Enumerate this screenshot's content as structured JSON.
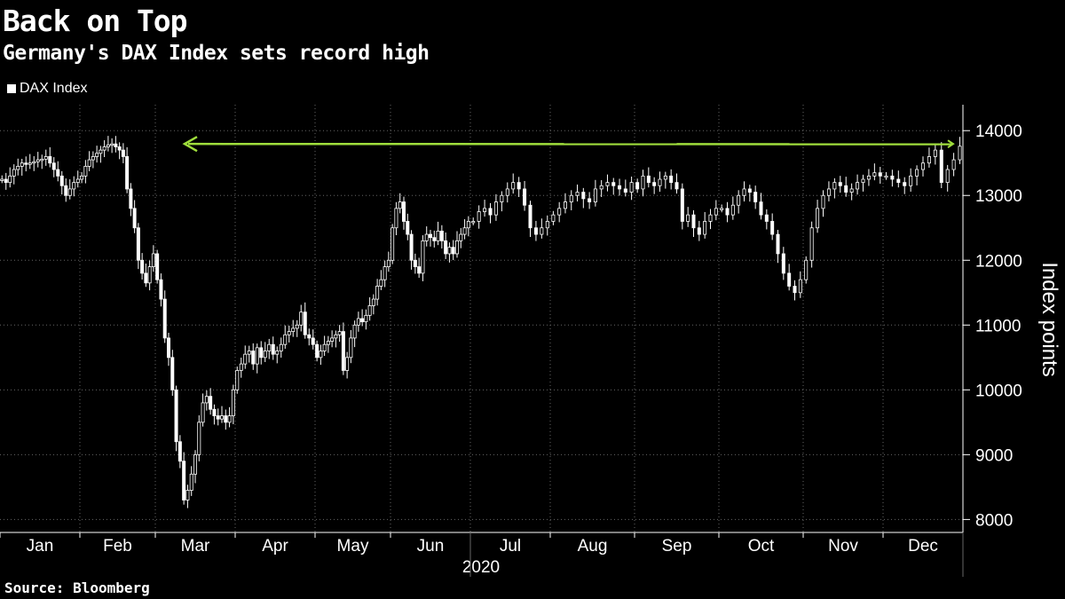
{
  "header": {
    "title": "Back on Top",
    "subtitle": "Germany's DAX Index sets record high"
  },
  "footer": {
    "source": "Source: Bloomberg"
  },
  "colors": {
    "background": "#000000",
    "candle": "#ffffff",
    "grid": "#666666",
    "arrow": "#9fde3c"
  },
  "chart_data": {
    "type": "candlestick",
    "title": "Back on Top",
    "subtitle": "Germany's DAX Index sets record high",
    "legend": [
      "DAX Index"
    ],
    "legend_position": "top-left",
    "ylabel": "Index points",
    "xlabel": "2020",
    "ylim": [
      7800,
      14400
    ],
    "yticks": [
      8000,
      9000,
      10000,
      11000,
      12000,
      13000,
      14000
    ],
    "months": [
      "Jan",
      "Feb",
      "Mar",
      "Apr",
      "May",
      "Jun",
      "Jul",
      "Aug",
      "Sep",
      "Oct",
      "Nov",
      "Dec"
    ],
    "year_label": "2020",
    "grid": true,
    "annotation": {
      "type": "arrow",
      "value": 13795,
      "description": "horizontal line from previous record high to current level"
    },
    "series": [
      {
        "name": "DAX Index",
        "approx_closes_by_month": {
          "Jan": [
            13250,
            13200,
            13300,
            13400,
            13450,
            13500,
            13480,
            13500,
            13520,
            13550,
            13560,
            13600,
            13500,
            13400,
            13300,
            13150,
            13000,
            13100,
            13200,
            13250
          ],
          "Feb": [
            13300,
            13450,
            13550,
            13600,
            13650,
            13700,
            13750,
            13780,
            13795,
            13750,
            13700,
            13600,
            13100,
            12800,
            12500,
            12000,
            11800,
            11650,
            11900,
            12100
          ],
          "Mar": [
            11700,
            11400,
            10800,
            10500,
            10000,
            9200,
            8900,
            8300,
            8450,
            8700,
            9000,
            9500,
            9800,
            9900,
            9700,
            9600,
            9550,
            9600,
            9500,
            9600,
            10000
          ],
          "Apr": [
            10300,
            10400,
            10550,
            10600,
            10400,
            10650,
            10500,
            10600,
            10700,
            10550,
            10600,
            10700,
            10850,
            10900,
            10950,
            11000,
            11200,
            10850,
            10800,
            10700
          ],
          "May": [
            10500,
            10600,
            10700,
            10750,
            10800,
            10850,
            10900,
            10300,
            10500,
            10800,
            11000,
            11100,
            11050,
            11150,
            11300,
            11400,
            11600,
            11700,
            11900,
            12000
          ],
          "Jun": [
            12500,
            12800,
            12900,
            12600,
            12400,
            12000,
            11900,
            11800,
            12300,
            12400,
            12350,
            12300,
            12450,
            12300,
            12100,
            12200,
            12100,
            12300,
            12400,
            12500,
            12600
          ],
          "Jul": [
            12600,
            12750,
            12800,
            12700,
            12900,
            13000,
            13100,
            13200,
            13100,
            12850,
            12500,
            12400,
            12500,
            12600
          ],
          "Aug": [
            12700,
            12800,
            12900,
            13000,
            13050,
            12950,
            12900,
            13100,
            13150,
            13200,
            13150,
            13100,
            13050,
            13200
          ],
          "Sep": [
            13100,
            13300,
            13200,
            13150,
            13250,
            13300,
            13200,
            13100,
            12600,
            12700,
            12500,
            12400,
            12600,
            12700,
            12800
          ],
          "Oct": [
            12800,
            12700,
            12850,
            13000,
            13100,
            13050,
            12900,
            12700,
            12600,
            12400,
            12100,
            11800,
            11600,
            11500,
            11700
          ],
          "Nov": [
            12000,
            12500,
            12800,
            13000,
            13100,
            13200,
            13150,
            13050,
            13100,
            13200,
            13250,
            13300,
            13350,
            13300
          ],
          "Dec": [
            13300,
            13250,
            13200,
            13150,
            13300,
            13400,
            13500,
            13600,
            13700,
            13200,
            13400,
            13550,
            13760
          ]
        }
      }
    ]
  }
}
